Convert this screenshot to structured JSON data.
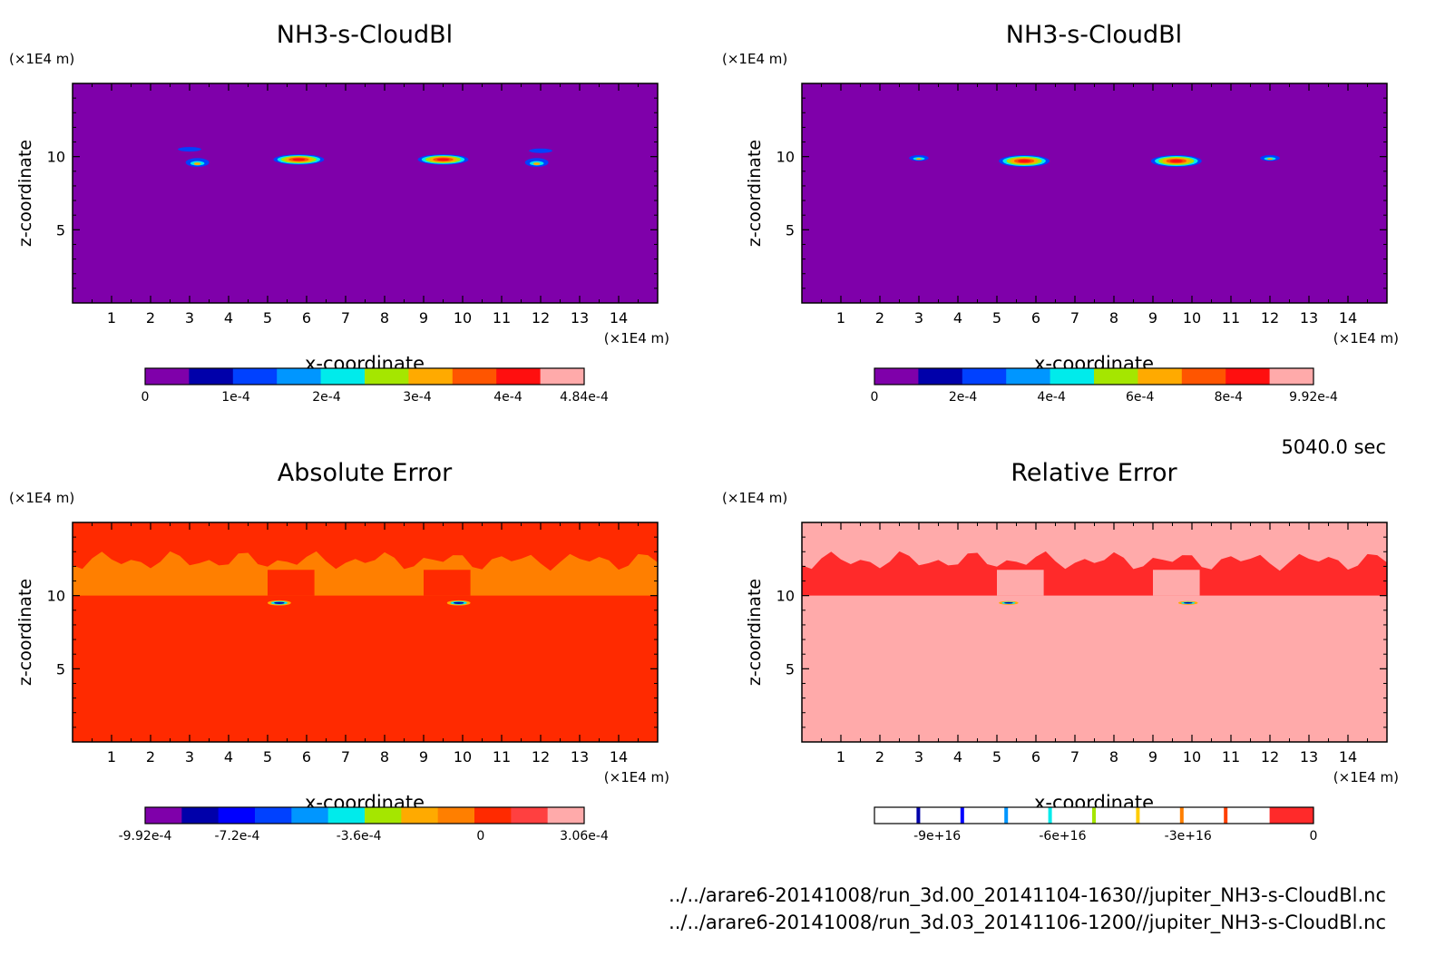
{
  "time_label": "5040.0 sec",
  "files": [
    "../../arare6-20141008/run_3d.00_20141104-1630//jupiter_NH3-s-CloudBl.nc",
    "../../arare6-20141008/run_3d.03_20141106-1200//jupiter_NH3-s-CloudBl.nc"
  ],
  "chart_data": [
    {
      "type": "heatmap",
      "title": "NH3-s-CloudBl",
      "xlabel": "x-coordinate",
      "ylabel": "z-coordinate",
      "x_unit": "(×1E4 m)",
      "y_unit": "(×1E4 m)",
      "xlim": [
        0,
        15
      ],
      "ylim": [
        0,
        15
      ],
      "x_ticks": [
        1,
        2,
        3,
        4,
        5,
        6,
        7,
        8,
        9,
        10,
        11,
        12,
        13,
        14
      ],
      "y_ticks": [
        5,
        10
      ],
      "background_color": "#7f00aa",
      "features": [
        {
          "kind": "cap",
          "x": 5.8,
          "z": 9.8,
          "w": 1.3,
          "h": 0.7
        },
        {
          "kind": "cap",
          "x": 9.5,
          "z": 9.8,
          "w": 1.3,
          "h": 0.7
        },
        {
          "kind": "blob",
          "x": 3.2,
          "z": 9.6,
          "w": 0.6,
          "h": 0.6
        },
        {
          "kind": "blob",
          "x": 11.9,
          "z": 9.6,
          "w": 0.6,
          "h": 0.6
        },
        {
          "kind": "streak",
          "x": 3.0,
          "z": 10.5,
          "w": 0.6,
          "h": 0.2
        },
        {
          "kind": "streak",
          "x": 12.0,
          "z": 10.4,
          "w": 0.6,
          "h": 0.2
        }
      ],
      "colorbar": {
        "colors": [
          "#7f00aa",
          "#0000aa",
          "#0041ff",
          "#0096ff",
          "#00ebeb",
          "#a5e600",
          "#ffaa00",
          "#ff5500",
          "#ff0f0f",
          "#ffaaaa"
        ],
        "min": 0,
        "max": 0.000484,
        "tick_values": [
          0,
          0.0001,
          0.0002,
          0.0003,
          0.0004,
          0.000484
        ],
        "tick_labels": [
          "0",
          "1e-4",
          "2e-4",
          "3e-4",
          "4e-4",
          "4.84e-4"
        ]
      }
    },
    {
      "type": "heatmap",
      "title": "NH3-s-CloudBl",
      "xlabel": "x-coordinate",
      "ylabel": "z-coordinate",
      "x_unit": "(×1E4 m)",
      "y_unit": "(×1E4 m)",
      "xlim": [
        0,
        15
      ],
      "ylim": [
        0,
        15
      ],
      "x_ticks": [
        1,
        2,
        3,
        4,
        5,
        6,
        7,
        8,
        9,
        10,
        11,
        12,
        13,
        14
      ],
      "y_ticks": [
        5,
        10
      ],
      "background_color": "#7f00aa",
      "features": [
        {
          "kind": "cap",
          "x": 5.7,
          "z": 9.7,
          "w": 1.3,
          "h": 0.8
        },
        {
          "kind": "cap",
          "x": 9.6,
          "z": 9.7,
          "w": 1.3,
          "h": 0.8
        },
        {
          "kind": "blob",
          "x": 3.0,
          "z": 9.9,
          "w": 0.5,
          "h": 0.4
        },
        {
          "kind": "blob",
          "x": 12.0,
          "z": 9.9,
          "w": 0.5,
          "h": 0.4
        }
      ],
      "colorbar": {
        "colors": [
          "#7f00aa",
          "#0000aa",
          "#0041ff",
          "#0096ff",
          "#00ebeb",
          "#a5e600",
          "#ffaa00",
          "#ff5500",
          "#ff0f0f",
          "#ffaaaa"
        ],
        "min": 0,
        "max": 0.000992,
        "tick_values": [
          0,
          0.0002,
          0.0004,
          0.0006,
          0.0008,
          0.000992
        ],
        "tick_labels": [
          "0",
          "2e-4",
          "4e-4",
          "6e-4",
          "8e-4",
          "9.92e-4"
        ]
      }
    },
    {
      "type": "heatmap",
      "title": "Absolute Error",
      "xlabel": "x-coordinate",
      "ylabel": "z-coordinate",
      "x_unit": "(×1E4 m)",
      "y_unit": "(×1E4 m)",
      "xlim": [
        0,
        15
      ],
      "ylim": [
        0,
        15
      ],
      "x_ticks": [
        1,
        2,
        3,
        4,
        5,
        6,
        7,
        8,
        9,
        10,
        11,
        12,
        13,
        14
      ],
      "y_ticks": [
        5,
        10
      ],
      "background_color": "#ff2a00",
      "band": {
        "color": "#ff7f00",
        "z_min": 10.0,
        "z_max": 13.0
      },
      "features": [
        {
          "kind": "dipole",
          "x": 5.3,
          "z": 9.5,
          "w": 0.6,
          "h": 0.35
        },
        {
          "kind": "dipole",
          "x": 9.9,
          "z": 9.5,
          "w": 0.6,
          "h": 0.35
        }
      ],
      "colorbar": {
        "colors": [
          "#7f00aa",
          "#0000aa",
          "#0000ff",
          "#0041ff",
          "#0096ff",
          "#00ebeb",
          "#a5e600",
          "#ffaa00",
          "#ff7f00",
          "#ff2a00",
          "#ff4040",
          "#ffaaaa"
        ],
        "min": -0.000992,
        "max": 0.000306,
        "tick_values": [
          -0.000992,
          -0.00072,
          -0.00036,
          0,
          0.000306
        ],
        "tick_labels": [
          "-9.92e-4",
          "-7.2e-4",
          "-3.6e-4",
          "0",
          "3.06e-4"
        ]
      }
    },
    {
      "type": "heatmap",
      "title": "Relative Error",
      "xlabel": "x-coordinate",
      "ylabel": "z-coordinate",
      "x_unit": "(×1E4 m)",
      "y_unit": "(×1E4 m)",
      "xlim": [
        0,
        15
      ],
      "ylim": [
        0,
        15
      ],
      "x_ticks": [
        1,
        2,
        3,
        4,
        5,
        6,
        7,
        8,
        9,
        10,
        11,
        12,
        13,
        14
      ],
      "y_ticks": [
        5,
        10
      ],
      "background_color": "#ffaaaa",
      "band": {
        "color": "#ff2a2a",
        "z_min": 10.0,
        "z_max": 13.0
      },
      "features": [
        {
          "kind": "dipole",
          "x": 5.3,
          "z": 9.5,
          "w": 0.5,
          "h": 0.25
        },
        {
          "kind": "dipole",
          "x": 9.9,
          "z": 9.5,
          "w": 0.5,
          "h": 0.25
        }
      ],
      "colorbar": {
        "style": "lines",
        "colors": [
          "#ffffff",
          "#0000aa",
          "#0000ff",
          "#0096ff",
          "#00ebeb",
          "#a5e600",
          "#ffcc00",
          "#ff7f00",
          "#ff4000",
          "#ff2a2a"
        ],
        "min": -1.05e+17,
        "max": 0,
        "tick_values": [
          -9e+16,
          -6e+16,
          -3e+16,
          0
        ],
        "tick_labels": [
          "-9e+16",
          "-6e+16",
          "-3e+16",
          "0"
        ]
      }
    }
  ]
}
